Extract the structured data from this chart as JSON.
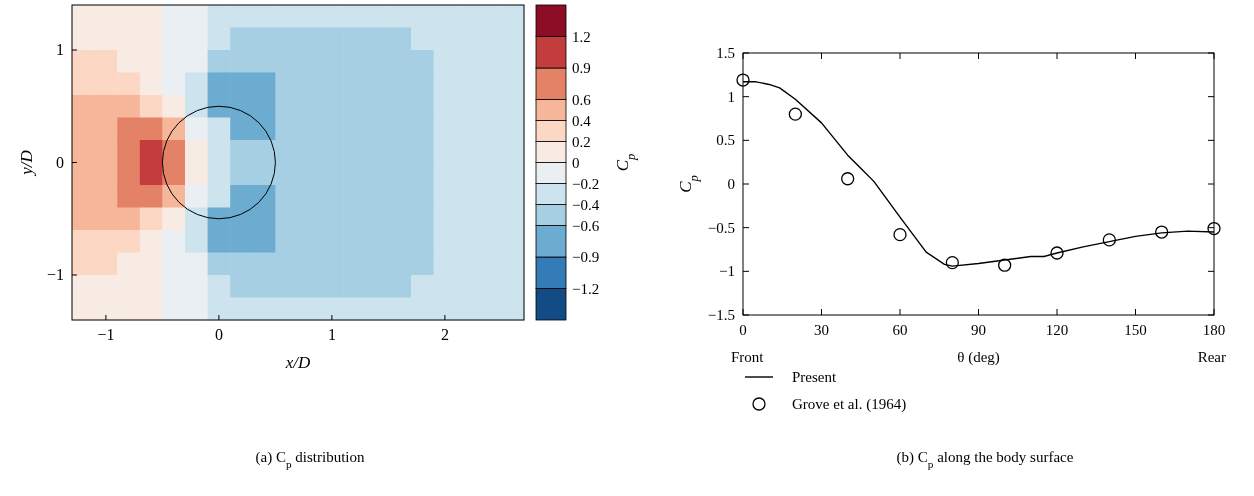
{
  "chart_data": [
    {
      "type": "heatmap",
      "title": "(a)  C$_{p}$ distribution",
      "xlabel": "x/D",
      "ylabel": "y/D",
      "clabel": "C$_{p}$",
      "cells": [
        [
          0.1,
          0.1,
          0.1,
          0.1,
          -0.1,
          -0.1,
          -0.3,
          -0.3,
          -0.3,
          -0.3,
          -0.3,
          -0.3,
          -0.3,
          -0.3,
          -0.3,
          -0.3,
          -0.3,
          -0.3,
          -0.3,
          -0.3
        ],
        [
          0.1,
          0.1,
          0.1,
          0.1,
          -0.1,
          -0.1,
          -0.3,
          -0.5,
          -0.5,
          -0.5,
          -0.5,
          -0.5,
          -0.5,
          -0.5,
          -0.5,
          -0.3,
          -0.3,
          -0.3,
          -0.3,
          -0.3
        ],
        [
          0.3,
          0.3,
          0.1,
          0.1,
          -0.1,
          -0.1,
          -0.5,
          -0.5,
          -0.5,
          -0.5,
          -0.5,
          -0.5,
          -0.5,
          -0.5,
          -0.5,
          -0.5,
          -0.3,
          -0.3,
          -0.3,
          -0.3
        ],
        [
          0.3,
          0.3,
          0.3,
          0.1,
          -0.1,
          -0.3,
          -0.75,
          -0.75,
          -0.75,
          -0.5,
          -0.5,
          -0.5,
          -0.5,
          -0.5,
          -0.5,
          -0.5,
          -0.3,
          -0.3,
          -0.3,
          -0.3
        ],
        [
          0.5,
          0.5,
          0.5,
          0.3,
          0.1,
          -0.3,
          -0.75,
          -0.75,
          -0.75,
          -0.5,
          -0.5,
          -0.5,
          -0.5,
          -0.5,
          -0.5,
          -0.5,
          -0.3,
          -0.3,
          -0.3,
          -0.3
        ],
        [
          0.5,
          0.5,
          0.75,
          0.75,
          0.5,
          -0.1,
          -0.3,
          -0.75,
          -0.75,
          -0.5,
          -0.5,
          -0.5,
          -0.5,
          -0.5,
          -0.5,
          -0.5,
          -0.3,
          -0.3,
          -0.3,
          -0.3
        ],
        [
          0.5,
          0.5,
          0.75,
          1.0,
          0.75,
          0.1,
          -0.3,
          -0.5,
          -0.5,
          -0.5,
          -0.5,
          -0.5,
          -0.5,
          -0.5,
          -0.5,
          -0.5,
          -0.3,
          -0.3,
          -0.3,
          -0.3
        ],
        [
          0.5,
          0.5,
          0.75,
          1.0,
          0.75,
          0.1,
          -0.3,
          -0.5,
          -0.5,
          -0.5,
          -0.5,
          -0.5,
          -0.5,
          -0.5,
          -0.5,
          -0.5,
          -0.3,
          -0.3,
          -0.3,
          -0.3
        ],
        [
          0.5,
          0.5,
          0.75,
          0.75,
          0.5,
          -0.1,
          -0.3,
          -0.75,
          -0.75,
          -0.5,
          -0.5,
          -0.5,
          -0.5,
          -0.5,
          -0.5,
          -0.5,
          -0.3,
          -0.3,
          -0.3,
          -0.3
        ],
        [
          0.5,
          0.5,
          0.5,
          0.3,
          0.1,
          -0.3,
          -0.75,
          -0.75,
          -0.75,
          -0.5,
          -0.5,
          -0.5,
          -0.5,
          -0.5,
          -0.5,
          -0.5,
          -0.3,
          -0.3,
          -0.3,
          -0.3
        ],
        [
          0.3,
          0.3,
          0.3,
          0.1,
          -0.1,
          -0.3,
          -0.75,
          -0.75,
          -0.75,
          -0.5,
          -0.5,
          -0.5,
          -0.5,
          -0.5,
          -0.5,
          -0.5,
          -0.3,
          -0.3,
          -0.3,
          -0.3
        ],
        [
          0.3,
          0.3,
          0.1,
          0.1,
          -0.1,
          -0.1,
          -0.5,
          -0.5,
          -0.5,
          -0.5,
          -0.5,
          -0.5,
          -0.5,
          -0.5,
          -0.5,
          -0.5,
          -0.3,
          -0.3,
          -0.3,
          -0.3
        ],
        [
          0.1,
          0.1,
          0.1,
          0.1,
          -0.1,
          -0.1,
          -0.3,
          -0.5,
          -0.5,
          -0.5,
          -0.5,
          -0.5,
          -0.5,
          -0.5,
          -0.5,
          -0.3,
          -0.3,
          -0.3,
          -0.3,
          -0.3
        ],
        [
          0.1,
          0.1,
          0.1,
          0.1,
          -0.1,
          -0.1,
          -0.3,
          -0.3,
          -0.3,
          -0.3,
          -0.3,
          -0.3,
          -0.3,
          -0.3,
          -0.3,
          -0.3,
          -0.3,
          -0.3,
          -0.3,
          -0.3
        ]
      ],
      "clim": [
        -1.5,
        1.5
      ],
      "cticks": [
        -1.2,
        -0.9,
        -0.6,
        -0.4,
        -0.2,
        0,
        0.2,
        0.4,
        0.6,
        0.9,
        1.2
      ],
      "xlim": [
        -1.3,
        2.7
      ],
      "xticks": [
        -1,
        0,
        1,
        2
      ],
      "ylim": [
        -1.4,
        1.4
      ],
      "yticks": [
        -1,
        0,
        1
      ]
    },
    {
      "type": "line",
      "title": "(b)  C$_{p}$ along the body surface",
      "xlabel": "θ (deg)",
      "ylabel": "C$_{p}$",
      "annotations": [
        "Front",
        "Rear"
      ],
      "legend": "bottom",
      "xlim": [
        0,
        180
      ],
      "xticks": [
        0,
        30,
        60,
        90,
        120,
        150,
        180
      ],
      "ylim": [
        -1.5,
        1.5
      ],
      "yticks": [
        -1.5,
        -1,
        -0.5,
        0,
        0.5,
        1,
        1.5
      ],
      "series": [
        {
          "name": "Present",
          "type": "line",
          "color": "#000000",
          "x": [
            0,
            5,
            10,
            14,
            20,
            30,
            40,
            45,
            50,
            60,
            70,
            77,
            80,
            90,
            100,
            110,
            115,
            120,
            130,
            140,
            150,
            160,
            170,
            180
          ],
          "values": [
            1.17,
            1.17,
            1.14,
            1.1,
            0.97,
            0.7,
            0.33,
            0.18,
            0.03,
            -0.38,
            -0.78,
            -0.92,
            -0.94,
            -0.91,
            -0.87,
            -0.83,
            -0.83,
            -0.79,
            -0.72,
            -0.66,
            -0.6,
            -0.56,
            -0.54,
            -0.55
          ]
        },
        {
          "name": "Grove et al. (1964)",
          "type": "scatter",
          "marker": "circle",
          "color": "#000000",
          "x": [
            0,
            20,
            40,
            60,
            80,
            100,
            120,
            140,
            160,
            180
          ],
          "values": [
            1.19,
            0.8,
            0.06,
            -0.58,
            -0.9,
            -0.93,
            -0.79,
            -0.64,
            -0.55,
            -0.51
          ]
        }
      ]
    }
  ]
}
